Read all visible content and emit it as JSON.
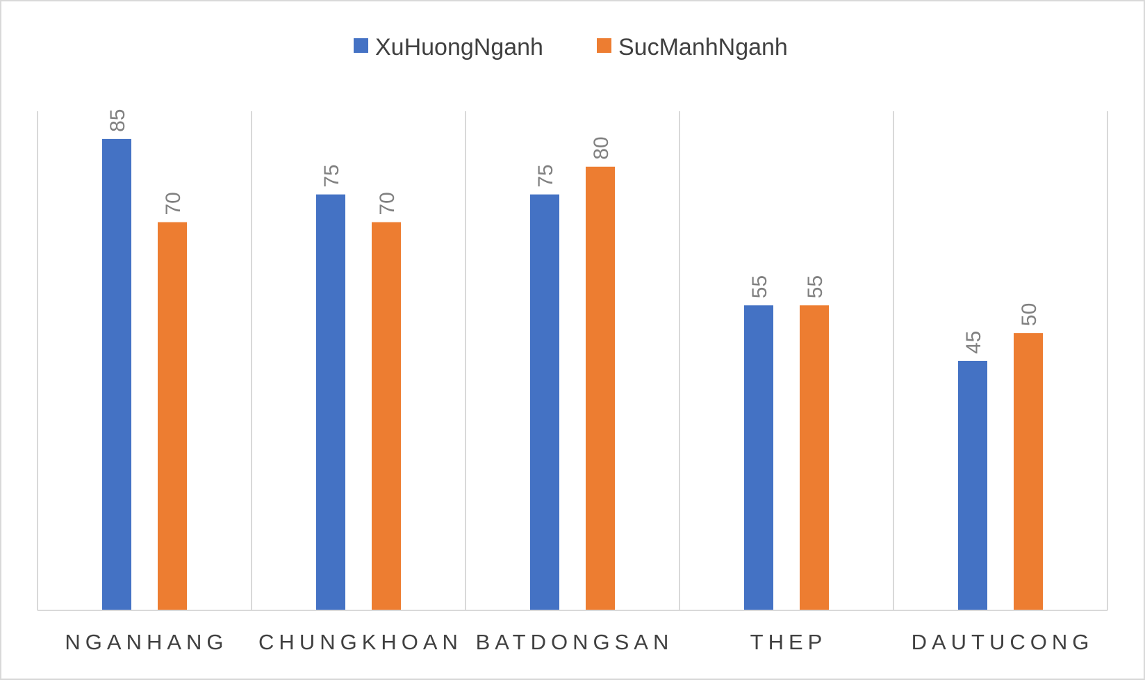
{
  "chart_data": {
    "type": "bar",
    "categories": [
      "NGANHANG",
      "CHUNGKHOAN",
      "BATDONGSAN",
      "THEP",
      "DAUTUCONG"
    ],
    "series": [
      {
        "name": "XuHuongNganh",
        "color": "#4472C4",
        "values": [
          85,
          75,
          75,
          55,
          45
        ]
      },
      {
        "name": "SucManhNganh",
        "color": "#ED7D31",
        "values": [
          70,
          70,
          80,
          55,
          50
        ]
      }
    ],
    "title": "",
    "xlabel": "",
    "ylabel": "",
    "ylim": [
      0,
      90
    ],
    "grid": "vertical category separators",
    "legend": "top-center",
    "data_labels": "rotated, above bars"
  }
}
